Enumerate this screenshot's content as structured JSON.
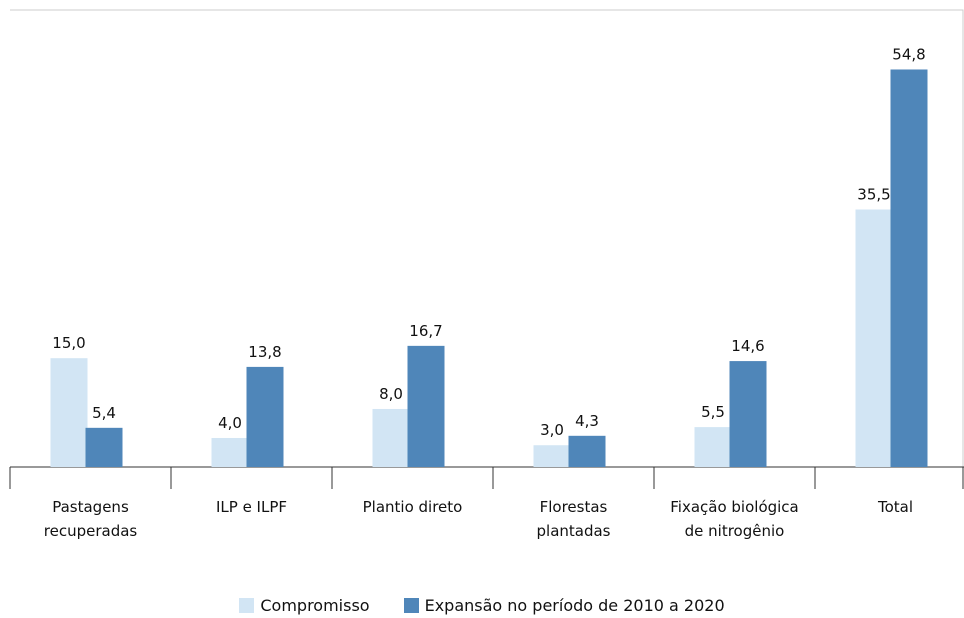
{
  "chart_data": {
    "type": "bar",
    "categories": [
      "Pastagens recuperadas",
      "ILP e ILPF",
      "Plantio direto",
      "Florestas plantadas",
      "Fixação biológica de nitrogênio",
      "Total"
    ],
    "series": [
      {
        "name": "Compromisso",
        "color": "#d2e5f4",
        "values": [
          15.0,
          4.0,
          8.0,
          3.0,
          5.5,
          35.5
        ],
        "value_labels": [
          "15,0",
          "4,0",
          "8,0",
          "3,0",
          "5,5",
          "35,5"
        ]
      },
      {
        "name": "Expansão no período de 2010 a 2020",
        "color": "#4f86b9",
        "values": [
          5.4,
          13.8,
          16.7,
          4.3,
          14.6,
          54.8
        ],
        "value_labels": [
          "5,4",
          "13,8",
          "16,7",
          "4,3",
          "14,6",
          "54,8"
        ]
      }
    ],
    "ylim": [
      0,
      63
    ]
  }
}
